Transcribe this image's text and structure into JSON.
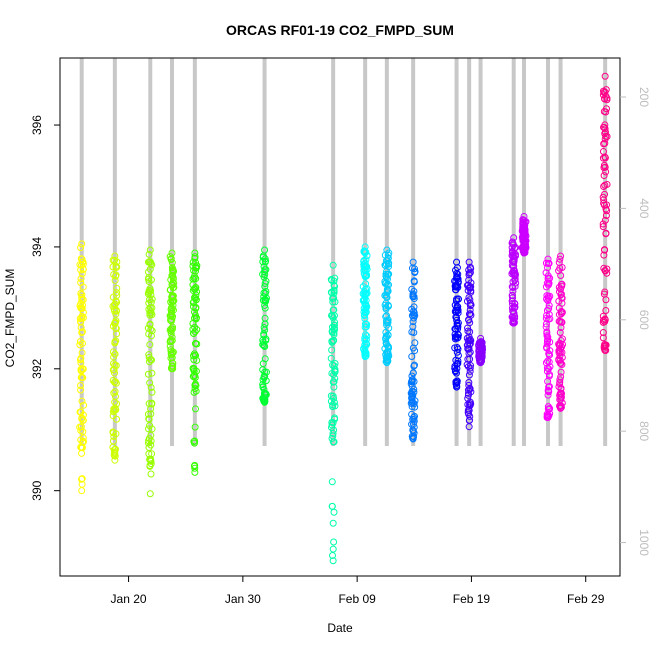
{
  "chart_data": {
    "type": "scatter",
    "title": "ORCAS RF01-19 CO2_FMPD_SUM",
    "xlabel": "Date",
    "ylabel": "CO2_FMPD_SUM",
    "x_ticks": [
      {
        "label": "Jan 20",
        "date": "2016-01-20"
      },
      {
        "label": "Jan 30",
        "date": "2016-01-30"
      },
      {
        "label": "Feb 09",
        "date": "2016-02-09"
      },
      {
        "label": "Feb 19",
        "date": "2016-02-19"
      },
      {
        "label": "Feb 29",
        "date": "2016-02-29"
      }
    ],
    "y_ticks": [
      390,
      392,
      394,
      396
    ],
    "y_right_ticks": [
      200,
      400,
      600,
      800,
      1000
    ],
    "xlim": [
      "2016-01-14",
      "2016-03-03"
    ],
    "ylim": [
      388.6,
      397.1
    ],
    "y_right_lim": [
      1060,
      130
    ],
    "grid": false,
    "legend": "none",
    "marker": "open-circle",
    "flights": [
      {
        "date": "2016-01-15.9",
        "min": 390.0,
        "max": 394.05,
        "color": "#ffff00",
        "bulk": [
          390.8,
          394.0
        ]
      },
      {
        "date": "2016-01-18.8",
        "min": 390.5,
        "max": 393.85,
        "color": "#ccff00",
        "bulk": [
          390.7,
          393.8
        ]
      },
      {
        "date": "2016-01-21.9",
        "min": 389.95,
        "max": 393.95,
        "color": "#99ff00",
        "bulk": [
          390.6,
          393.9
        ]
      },
      {
        "date": "2016-01-23.8",
        "min": 392.0,
        "max": 393.9,
        "color": "#66ff00",
        "bulk": [
          392.1,
          393.85
        ]
      },
      {
        "date": "2016-01-25.8",
        "min": 390.3,
        "max": 393.9,
        "color": "#33ff00",
        "bulk": [
          391.6,
          393.85
        ]
      },
      {
        "date": "2016-01-31.9",
        "min": 391.45,
        "max": 393.95,
        "color": "#00ff33",
        "bulk": [
          391.5,
          393.9
        ]
      },
      {
        "date": "2016-02-06.9",
        "min": 388.85,
        "max": 393.7,
        "color": "#00ffaa",
        "bulk": [
          390.8,
          393.6
        ]
      },
      {
        "date": "2016-02-09.7",
        "min": 392.2,
        "max": 394.0,
        "color": "#00ffff",
        "bulk": [
          392.3,
          393.95
        ]
      },
      {
        "date": "2016-02-11.6",
        "min": 392.1,
        "max": 393.95,
        "color": "#00ccff",
        "bulk": [
          392.2,
          393.9
        ]
      },
      {
        "date": "2016-02-13.9",
        "min": 390.85,
        "max": 393.75,
        "color": "#0077ff",
        "bulk": [
          391.0,
          393.7
        ]
      },
      {
        "date": "2016-02-17.7",
        "min": 391.7,
        "max": 393.75,
        "color": "#0000ff",
        "bulk": [
          391.8,
          393.7
        ]
      },
      {
        "date": "2016-02-18.8",
        "min": 391.05,
        "max": 393.75,
        "color": "#4400ff",
        "bulk": [
          391.4,
          393.7
        ]
      },
      {
        "date": "2016-02-19.8",
        "min": 392.1,
        "max": 392.5,
        "color": "#8800ff",
        "bulk": [
          392.15,
          392.45
        ]
      },
      {
        "date": "2016-02-22.7",
        "min": 392.75,
        "max": 394.15,
        "color": "#bb00ff",
        "bulk": [
          392.8,
          394.1
        ]
      },
      {
        "date": "2016-02-23.6",
        "min": 393.9,
        "max": 394.5,
        "color": "#cc00ff",
        "bulk": [
          393.95,
          394.45
        ]
      },
      {
        "date": "2016-02-25.7",
        "min": 391.2,
        "max": 393.8,
        "color": "#ff00ff",
        "bulk": [
          391.25,
          393.75
        ]
      },
      {
        "date": "2016-02-26.8",
        "min": 391.35,
        "max": 393.85,
        "color": "#ff00cc",
        "bulk": [
          391.4,
          393.8
        ]
      },
      {
        "date": "2016-03-01.7",
        "min": 392.3,
        "max": 396.8,
        "color": "#ff0088",
        "bulk": [
          392.4,
          396.7
        ]
      }
    ]
  }
}
